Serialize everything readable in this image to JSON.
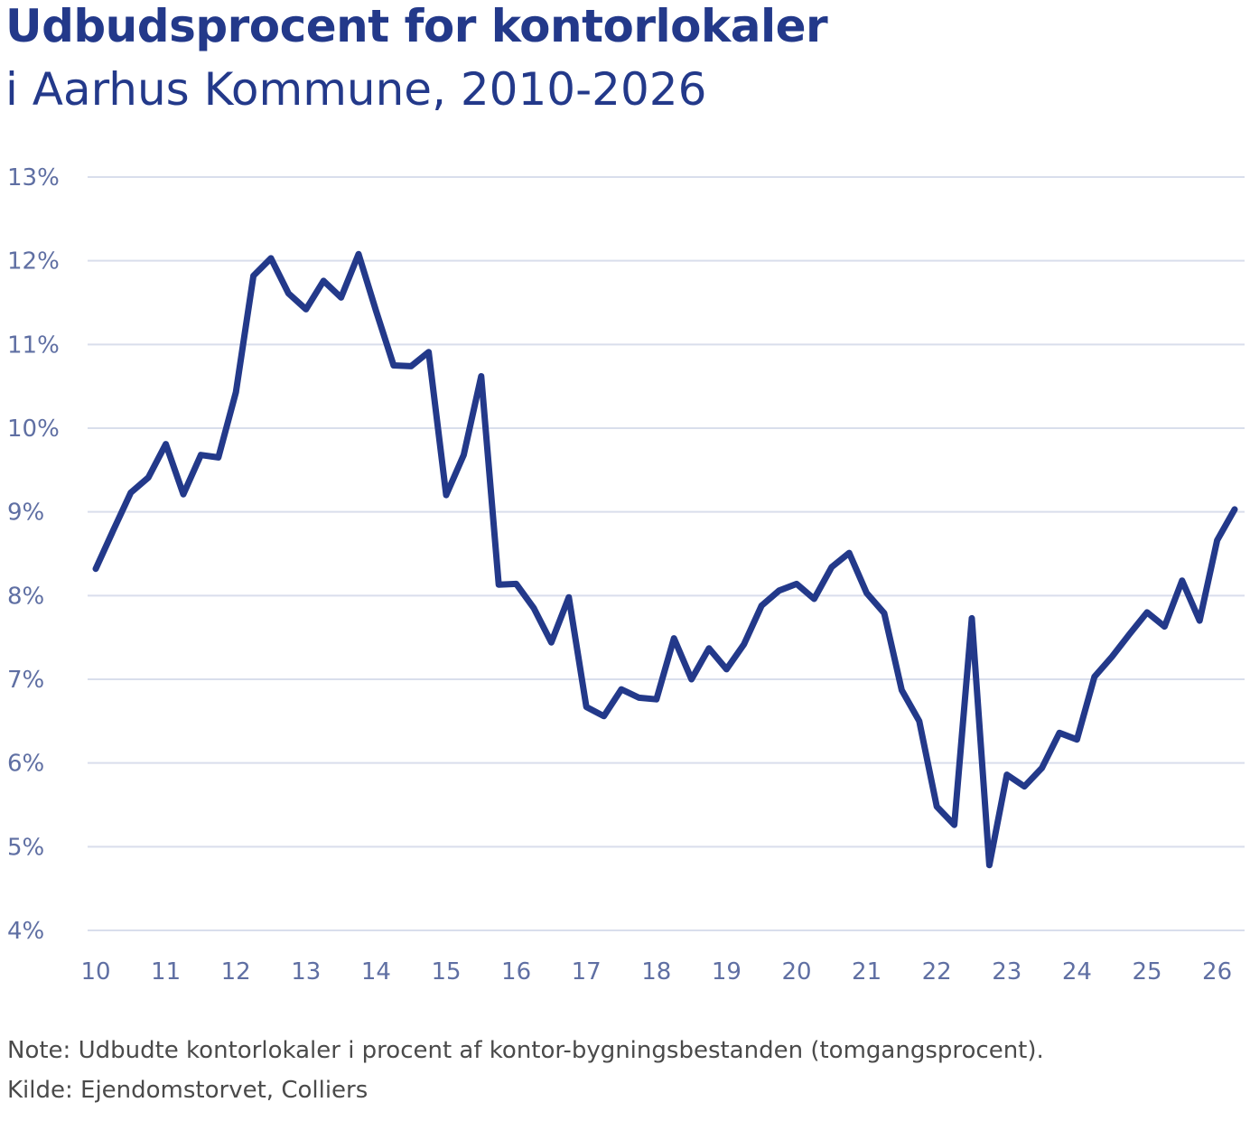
{
  "colors": {
    "title": "#23398a",
    "line": "#23398a",
    "grid": "#d9deec",
    "tick": "#5f6fa3",
    "note": "#4a4a4a"
  },
  "chart_data": {
    "type": "line",
    "title": "Udbudsprocent for kontorlokaler",
    "subtitle": "i Aarhus Kommune, 2010-2026",
    "xlabel": "",
    "ylabel": "",
    "xlim": [
      2010,
      2026.25
    ],
    "ylim": [
      4,
      13
    ],
    "grid": true,
    "x_ticks": [
      {
        "value": 2010,
        "label": "10"
      },
      {
        "value": 2011,
        "label": "11"
      },
      {
        "value": 2012,
        "label": "12"
      },
      {
        "value": 2013,
        "label": "13"
      },
      {
        "value": 2014,
        "label": "14"
      },
      {
        "value": 2015,
        "label": "15"
      },
      {
        "value": 2016,
        "label": "16"
      },
      {
        "value": 2017,
        "label": "17"
      },
      {
        "value": 2018,
        "label": "18"
      },
      {
        "value": 2019,
        "label": "19"
      },
      {
        "value": 2020,
        "label": "20"
      },
      {
        "value": 2021,
        "label": "21"
      },
      {
        "value": 2022,
        "label": "22"
      },
      {
        "value": 2023,
        "label": "23"
      },
      {
        "value": 2024,
        "label": "24"
      },
      {
        "value": 2025,
        "label": "25"
      },
      {
        "value": 2026,
        "label": "26"
      }
    ],
    "y_ticks": [
      {
        "value": 4,
        "label": "4%"
      },
      {
        "value": 5,
        "label": "5%"
      },
      {
        "value": 6,
        "label": "6%"
      },
      {
        "value": 7,
        "label": "7%"
      },
      {
        "value": 8,
        "label": "8%"
      },
      {
        "value": 9,
        "label": "9%"
      },
      {
        "value": 10,
        "label": "10%"
      },
      {
        "value": 11,
        "label": "11%"
      },
      {
        "value": 12,
        "label": "12%"
      },
      {
        "value": 13,
        "label": "13%"
      }
    ],
    "series": [
      {
        "x": [
          2010.0,
          2010.25,
          2010.5,
          2010.75,
          2011.0,
          2011.25,
          2011.5,
          2011.75,
          2012.0,
          2012.25,
          2012.5,
          2012.75,
          2013.0,
          2013.25,
          2013.5,
          2013.75,
          2014.0,
          2014.25,
          2014.5,
          2014.75,
          2015.0,
          2015.25,
          2015.5,
          2015.75,
          2016.0,
          2016.25,
          2016.5,
          2016.75,
          2017.0,
          2017.25,
          2017.5,
          2017.75,
          2018.0,
          2018.25,
          2018.5,
          2018.75,
          2019.0,
          2019.25,
          2019.5,
          2019.75,
          2020.0,
          2020.25,
          2020.5,
          2020.75,
          2021.0,
          2021.25,
          2021.5,
          2021.75,
          2022.0,
          2022.25,
          2022.5,
          2022.75,
          2023.0,
          2023.25,
          2023.5,
          2023.75,
          2024.0,
          2024.25,
          2024.5,
          2024.75,
          2025.0,
          2025.25,
          2025.5,
          2025.75,
          2026.0,
          2026.25
        ],
        "values": [
          8.32,
          8.78,
          9.23,
          9.41,
          9.81,
          9.21,
          9.68,
          9.65,
          10.43,
          11.82,
          12.03,
          11.61,
          11.42,
          11.76,
          11.56,
          12.08,
          11.4,
          10.75,
          10.74,
          10.91,
          9.2,
          9.68,
          10.62,
          8.13,
          8.14,
          7.85,
          7.44,
          7.98,
          6.67,
          6.56,
          6.88,
          6.78,
          6.76,
          7.49,
          7.0,
          7.37,
          7.12,
          7.42,
          7.88,
          8.06,
          8.14,
          7.96,
          8.34,
          8.51,
          8.03,
          7.79,
          6.87,
          6.5,
          5.48,
          5.26,
          7.73,
          4.78,
          5.86,
          5.72,
          5.94,
          6.36,
          6.28,
          7.03,
          7.27,
          7.54,
          7.8,
          7.63,
          8.18,
          7.7,
          8.66,
          9.03
        ]
      }
    ],
    "legend": "none"
  },
  "footer": {
    "note": "Note: Udbudte kontorlokaler i procent af kontor-bygningsbestanden (tomgangsprocent).",
    "source": "Kilde: Ejendomstorvet, Colliers"
  }
}
